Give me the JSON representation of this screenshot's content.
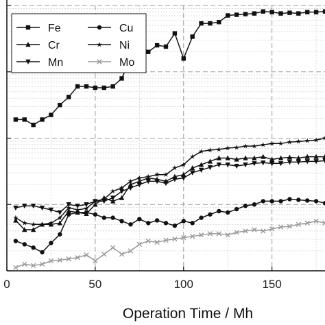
{
  "chart_data": {
    "type": "line",
    "xlabel": "Operation Time  / Mh",
    "ylabel": "",
    "xlim": [
      0,
      180
    ],
    "ylim": [
      0,
      4
    ],
    "y_scale": "log (values given in decades above the lowest visible grid line)",
    "xticks": [
      0,
      50,
      100,
      150
    ],
    "grid": true,
    "legend_position": "top-left",
    "series": [
      {
        "name": "Fe",
        "marker": "square",
        "x": [
          5,
          10,
          15,
          20,
          25,
          30,
          35,
          40,
          45,
          50,
          55,
          60,
          65,
          70,
          75,
          80,
          85,
          90,
          95,
          100,
          105,
          110,
          115,
          120,
          125,
          130,
          135,
          140,
          145,
          150,
          155,
          160,
          165,
          170,
          175,
          180
        ],
        "y": [
          2.28,
          2.28,
          2.2,
          2.28,
          2.35,
          2.5,
          2.62,
          2.78,
          2.78,
          2.76,
          2.76,
          2.78,
          2.9,
          3.2,
          3.22,
          3.3,
          3.4,
          3.38,
          3.58,
          3.2,
          3.53,
          3.73,
          3.73,
          3.75,
          3.85,
          3.86,
          3.87,
          3.88,
          3.91,
          3.9,
          3.88,
          3.89,
          3.88,
          3.9,
          3.9,
          3.91
        ]
      },
      {
        "name": "Cu",
        "marker": "circle",
        "x": [
          5,
          10,
          15,
          20,
          25,
          30,
          35,
          40,
          45,
          50,
          55,
          60,
          65,
          70,
          75,
          80,
          85,
          90,
          95,
          100,
          105,
          110,
          115,
          120,
          125,
          130,
          135,
          140,
          145,
          150,
          155,
          160,
          165,
          170,
          175,
          180
        ],
        "y": [
          0.45,
          0.4,
          0.35,
          0.28,
          0.42,
          0.55,
          0.85,
          0.88,
          0.88,
          0.85,
          0.8,
          0.8,
          0.75,
          0.7,
          0.78,
          0.72,
          0.76,
          0.72,
          0.68,
          0.75,
          0.72,
          0.8,
          0.85,
          0.9,
          0.88,
          0.93,
          0.98,
          1.0,
          1.05,
          1.05,
          1.05,
          1.08,
          1.07,
          1.06,
          1.05,
          1.02
        ]
      },
      {
        "name": "Cr",
        "marker": "triangle-up",
        "x": [
          5,
          10,
          15,
          20,
          25,
          30,
          35,
          40,
          45,
          50,
          55,
          60,
          65,
          70,
          75,
          80,
          85,
          90,
          95,
          100,
          105,
          110,
          115,
          120,
          125,
          130,
          135,
          140,
          145,
          150,
          155,
          160,
          165,
          170,
          175,
          180
        ],
        "y": [
          0.76,
          0.62,
          0.62,
          0.7,
          0.7,
          0.72,
          0.9,
          0.88,
          0.86,
          1.0,
          1.1,
          1.05,
          1.1,
          1.3,
          1.35,
          1.4,
          1.38,
          1.35,
          1.42,
          1.45,
          1.55,
          1.6,
          1.65,
          1.7,
          1.7,
          1.68,
          1.7,
          1.7,
          1.72,
          1.68,
          1.7,
          1.71,
          1.7,
          1.72,
          1.72,
          1.72
        ]
      },
      {
        "name": "Ni",
        "marker": "star",
        "x": [
          5,
          10,
          15,
          20,
          25,
          30,
          35,
          40,
          45,
          50,
          55,
          60,
          65,
          70,
          75,
          80,
          85,
          90,
          95,
          100,
          105,
          110,
          115,
          120,
          125,
          130,
          135,
          140,
          145,
          150,
          155,
          160,
          165,
          170,
          175,
          180
        ],
        "y": [
          0.8,
          0.72,
          0.7,
          0.7,
          0.72,
          0.8,
          0.95,
          0.92,
          0.94,
          1.05,
          1.08,
          1.2,
          1.25,
          1.35,
          1.4,
          1.42,
          1.45,
          1.45,
          1.55,
          1.6,
          1.72,
          1.8,
          1.82,
          1.83,
          1.85,
          1.86,
          1.88,
          1.88,
          1.9,
          1.92,
          1.92,
          1.94,
          1.95,
          1.96,
          1.97,
          2.0
        ]
      },
      {
        "name": "Mn",
        "marker": "triangle-down",
        "x": [
          5,
          10,
          15,
          20,
          25,
          30,
          35,
          40,
          45,
          50,
          55,
          60,
          65,
          70,
          75,
          80,
          85,
          90,
          95,
          100,
          105,
          110,
          115,
          120,
          125,
          130,
          135,
          140,
          145,
          150,
          155,
          160,
          165,
          170,
          175,
          180
        ],
        "y": [
          0.95,
          0.98,
          0.98,
          0.95,
          0.92,
          0.88,
          1.0,
          0.98,
          1.0,
          1.05,
          1.05,
          1.1,
          1.2,
          1.25,
          1.3,
          1.35,
          1.35,
          1.32,
          1.38,
          1.4,
          1.48,
          1.52,
          1.56,
          1.6,
          1.6,
          1.58,
          1.6,
          1.62,
          1.63,
          1.62,
          1.62,
          1.64,
          1.64,
          1.65,
          1.65,
          1.66
        ]
      },
      {
        "name": "Mo",
        "marker": "x",
        "x": [
          5,
          10,
          15,
          20,
          25,
          30,
          35,
          40,
          45,
          50,
          55,
          60,
          65,
          70,
          75,
          80,
          85,
          90,
          95,
          100,
          105,
          110,
          115,
          120,
          125,
          130,
          135,
          140,
          145,
          150,
          155,
          160,
          165,
          170,
          175,
          180
        ],
        "y": [
          0.05,
          0.1,
          0.08,
          0.1,
          0.15,
          0.16,
          0.18,
          0.2,
          0.24,
          0.15,
          0.25,
          0.35,
          0.25,
          0.3,
          0.4,
          0.45,
          0.43,
          0.46,
          0.48,
          0.5,
          0.52,
          0.54,
          0.56,
          0.56,
          0.54,
          0.58,
          0.6,
          0.62,
          0.6,
          0.63,
          0.66,
          0.67,
          0.7,
          0.72,
          0.75,
          0.72
        ]
      }
    ]
  }
}
